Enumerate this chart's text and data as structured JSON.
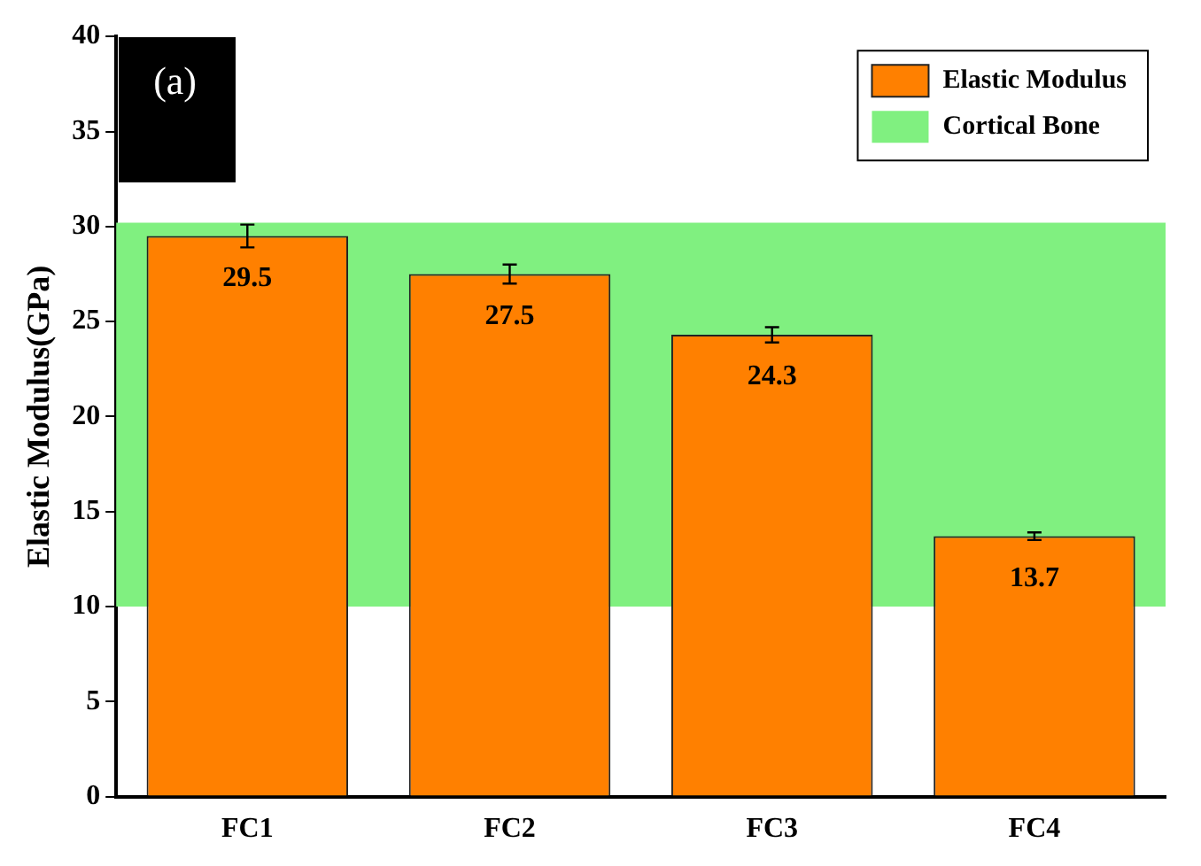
{
  "chart_data": {
    "type": "bar",
    "ylabel": "Elastic Modulus(GPa)",
    "categories": [
      "FC1",
      "FC2",
      "FC3",
      "FC4"
    ],
    "series": [
      {
        "name": "Elastic Modulus",
        "color": "#ff8000",
        "values": [
          29.5,
          27.5,
          24.3,
          13.7
        ],
        "errors": [
          0.6,
          0.5,
          0.4,
          0.2
        ]
      }
    ],
    "ylim": [
      0,
      40
    ],
    "yticks": [
      0,
      5,
      10,
      15,
      20,
      25,
      30,
      35,
      40
    ],
    "grid": false,
    "legend": "top right",
    "data_labels": true,
    "bands": [
      {
        "axis": "y",
        "from": 10,
        "to": 30.2,
        "label": "Cortical Bone",
        "color": "#80f080"
      }
    ],
    "annotations": [
      "(a)"
    ]
  }
}
